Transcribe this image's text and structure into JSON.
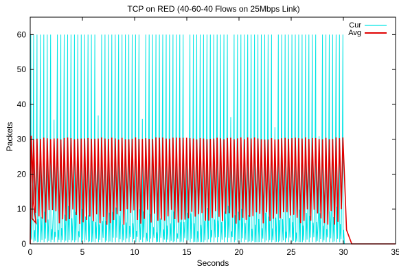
{
  "chart_data": {
    "type": "line",
    "title": "TCP on RED (40-60-40 Flows on 25Mbps Link)",
    "xlabel": "Seconds",
    "ylabel": "Packets",
    "xlim": [
      0,
      35
    ],
    "ylim": [
      0,
      65
    ],
    "xticks": [
      0,
      5,
      10,
      15,
      20,
      25,
      30,
      35
    ],
    "yticks": [
      0,
      10,
      20,
      30,
      40,
      50,
      60
    ],
    "grid": false,
    "legend_position": "top-right",
    "series": [
      {
        "name": "Cur",
        "color": "#00e5e5",
        "style": "sawtooth",
        "description_values": {
          "peak": 60,
          "trough": 0,
          "cycles": 92,
          "start_s": 0.0,
          "end_s": 30.1
        }
      },
      {
        "name": "Avg",
        "color": "#e00000",
        "style": "oscillation",
        "description_values": {
          "initial_peak": 31,
          "peak": 30.5,
          "trough_range": [
            5.5,
            10
          ],
          "cycles": 92,
          "decay_end_s": 30.8
        }
      }
    ]
  }
}
